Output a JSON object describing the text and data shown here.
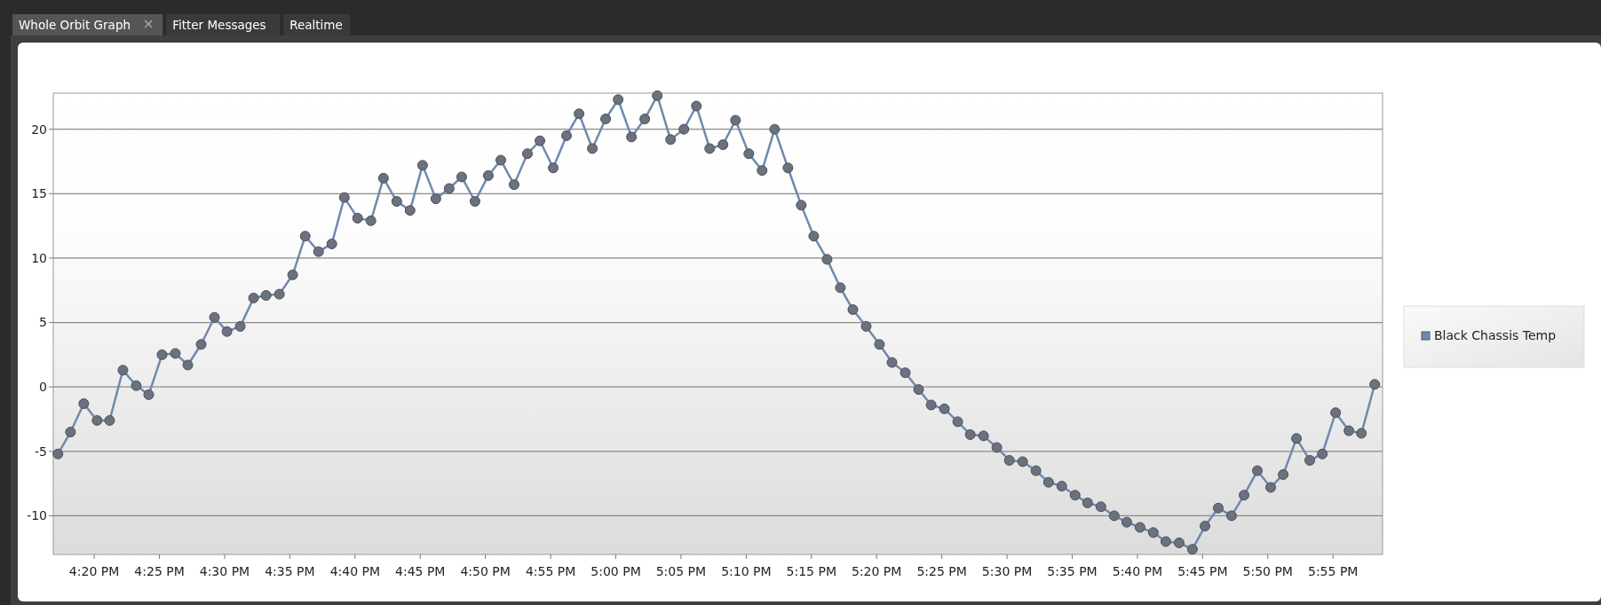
{
  "chart_data": {
    "type": "line",
    "annotations": [
      "Whole Orbit Graph",
      "Fitter Messages",
      "Realtime"
    ],
    "x": [
      16.287,
      16.303,
      16.32,
      16.337,
      16.353,
      16.37,
      16.387,
      16.403,
      16.42,
      16.437,
      16.453,
      16.47,
      16.487,
      16.503,
      16.52,
      16.537,
      16.553,
      16.57,
      16.587,
      16.603,
      16.62,
      16.637,
      16.653,
      16.67,
      16.687,
      16.703,
      16.72,
      16.737,
      16.753,
      16.77,
      16.787,
      16.803,
      16.82,
      16.837,
      16.853,
      16.87,
      16.887,
      16.903,
      16.92,
      16.937,
      16.953,
      16.97,
      16.987,
      17.003,
      17.02,
      17.037,
      17.053,
      17.07,
      17.087,
      17.103,
      17.12,
      17.137,
      17.153,
      17.17,
      17.187,
      17.203,
      17.22,
      17.237,
      17.253,
      17.27,
      17.287,
      17.303,
      17.32,
      17.337,
      17.353,
      17.37,
      17.387,
      17.403,
      17.42,
      17.437,
      17.453,
      17.47,
      17.487,
      17.503,
      17.52,
      17.537,
      17.553,
      17.57,
      17.587,
      17.603,
      17.62,
      17.637,
      17.653,
      17.67,
      17.687,
      17.703,
      17.72,
      17.737,
      17.753,
      17.77,
      17.787,
      17.803,
      17.82,
      17.837,
      17.853,
      17.87,
      17.887,
      17.903,
      17.92,
      17.937,
      17.953,
      17.97
    ],
    "series": [
      {
        "name": "Black Chassis Temp",
        "color": "#6e8aae",
        "values": [
          -5.2,
          -3.5,
          -1.3,
          -2.6,
          -2.6,
          1.3,
          0.1,
          -0.6,
          2.5,
          2.6,
          1.7,
          3.3,
          5.4,
          4.3,
          4.7,
          6.9,
          7.1,
          7.2,
          8.7,
          11.7,
          10.5,
          11.1,
          14.7,
          13.1,
          12.9,
          16.2,
          14.4,
          13.7,
          17.2,
          14.6,
          15.4,
          16.3,
          14.4,
          16.4,
          17.6,
          15.7,
          18.1,
          19.1,
          17.0,
          19.5,
          21.2,
          18.5,
          20.8,
          22.3,
          19.4,
          20.8,
          22.6,
          19.2,
          20.0,
          21.8,
          18.5,
          18.8,
          20.7,
          18.1,
          16.8,
          20.0,
          17.0,
          14.1,
          11.7,
          9.9,
          7.7,
          6.0,
          4.7,
          3.3,
          1.9,
          1.1,
          -0.2,
          -1.4,
          -1.7,
          -2.7,
          -3.7,
          -3.8,
          -4.7,
          -5.7,
          -5.8,
          -6.5,
          -7.4,
          -7.7,
          -8.4,
          -9.0,
          -9.3,
          -10.0,
          -10.5,
          -10.9,
          -11.3,
          -12.0,
          -12.1,
          -12.6,
          -10.8,
          -9.4,
          -10.0,
          -8.4,
          -6.5,
          -7.8,
          -6.8,
          -4.0,
          -5.7,
          -5.2,
          -2.0,
          -3.4,
          -3.6,
          0.2
        ]
      }
    ],
    "xlim": [
      16.281,
      17.98
    ],
    "xticks": [
      {
        "value": 16.3333,
        "label": "4:20 PM"
      },
      {
        "value": 16.4167,
        "label": "4:25 PM"
      },
      {
        "value": 16.5,
        "label": "4:30 PM"
      },
      {
        "value": 16.5833,
        "label": "4:35 PM"
      },
      {
        "value": 16.6667,
        "label": "4:40 PM"
      },
      {
        "value": 16.75,
        "label": "4:45 PM"
      },
      {
        "value": 16.8333,
        "label": "4:50 PM"
      },
      {
        "value": 16.9167,
        "label": "4:55 PM"
      },
      {
        "value": 17,
        "label": "5:00 PM"
      },
      {
        "value": 17.0833,
        "label": "5:05 PM"
      },
      {
        "value": 17.1667,
        "label": "5:10 PM"
      },
      {
        "value": 17.25,
        "label": "5:15 PM"
      },
      {
        "value": 17.3333,
        "label": "5:20 PM"
      },
      {
        "value": 17.4167,
        "label": "5:25 PM"
      },
      {
        "value": 17.5,
        "label": "5:30 PM"
      },
      {
        "value": 17.5833,
        "label": "5:35 PM"
      },
      {
        "value": 17.6667,
        "label": "5:40 PM"
      },
      {
        "value": 17.75,
        "label": "5:45 PM"
      },
      {
        "value": 17.8333,
        "label": "5:50 PM"
      },
      {
        "value": 17.9167,
        "label": "5:55 PM"
      }
    ],
    "ylim": [
      -13,
      22.8
    ],
    "yticks": [
      -10,
      -5,
      0,
      5,
      10,
      15,
      20
    ],
    "grid": "y",
    "legend": "right",
    "marker": "circle",
    "line_style": "solid"
  }
}
